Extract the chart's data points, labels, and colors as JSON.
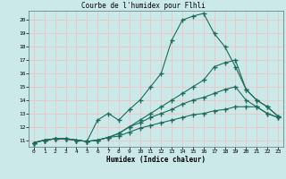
{
  "title": "Courbe de l'humidex pour Flhli",
  "xlabel": "Humidex (Indice chaleur)",
  "ylabel": "",
  "bg_color": "#cce9e9",
  "grid_color": "#e8c8c8",
  "line_color": "#1a6b5a",
  "xlim": [
    -0.5,
    23.5
  ],
  "ylim": [
    10.5,
    20.7
  ],
  "yticks": [
    11,
    12,
    13,
    14,
    15,
    16,
    17,
    18,
    19,
    20
  ],
  "xticks": [
    0,
    1,
    2,
    3,
    4,
    5,
    6,
    7,
    8,
    9,
    10,
    11,
    12,
    13,
    14,
    15,
    16,
    17,
    18,
    19,
    20,
    21,
    22,
    23
  ],
  "line1_x": [
    0,
    1,
    2,
    3,
    4,
    5,
    6,
    7,
    8,
    9,
    10,
    11,
    12,
    13,
    14,
    15,
    16,
    17,
    18,
    19,
    20,
    21,
    22,
    23
  ],
  "line1_y": [
    10.8,
    11.0,
    11.1,
    11.1,
    11.0,
    10.9,
    12.5,
    13.0,
    12.5,
    13.3,
    14.0,
    15.0,
    16.0,
    18.5,
    20.0,
    20.3,
    20.5,
    19.0,
    18.0,
    16.5,
    14.8,
    14.0,
    13.5,
    12.8
  ],
  "line2_x": [
    0,
    1,
    2,
    3,
    4,
    5,
    6,
    7,
    8,
    9,
    10,
    11,
    12,
    13,
    14,
    15,
    16,
    17,
    18,
    19,
    20,
    21,
    22,
    23
  ],
  "line2_y": [
    10.8,
    11.0,
    11.1,
    11.1,
    11.0,
    10.9,
    11.0,
    11.2,
    11.5,
    12.0,
    12.5,
    13.0,
    13.5,
    14.0,
    14.5,
    15.0,
    15.5,
    16.5,
    16.8,
    17.0,
    14.8,
    14.0,
    13.5,
    12.8
  ],
  "line3_x": [
    0,
    1,
    2,
    3,
    4,
    5,
    6,
    7,
    8,
    9,
    10,
    11,
    12,
    13,
    14,
    15,
    16,
    17,
    18,
    19,
    20,
    21,
    22,
    23
  ],
  "line3_y": [
    10.8,
    11.0,
    11.1,
    11.1,
    11.0,
    10.9,
    11.0,
    11.2,
    11.5,
    12.0,
    12.3,
    12.7,
    13.0,
    13.3,
    13.7,
    14.0,
    14.2,
    14.5,
    14.8,
    15.0,
    14.0,
    13.5,
    13.0,
    12.7
  ],
  "line4_x": [
    0,
    1,
    2,
    3,
    4,
    5,
    6,
    7,
    8,
    9,
    10,
    11,
    12,
    13,
    14,
    15,
    16,
    17,
    18,
    19,
    20,
    21,
    22,
    23
  ],
  "line4_y": [
    10.8,
    11.0,
    11.1,
    11.1,
    11.0,
    10.9,
    11.0,
    11.2,
    11.3,
    11.6,
    11.9,
    12.1,
    12.3,
    12.5,
    12.7,
    12.9,
    13.0,
    13.2,
    13.3,
    13.5,
    13.5,
    13.5,
    13.0,
    12.7
  ]
}
